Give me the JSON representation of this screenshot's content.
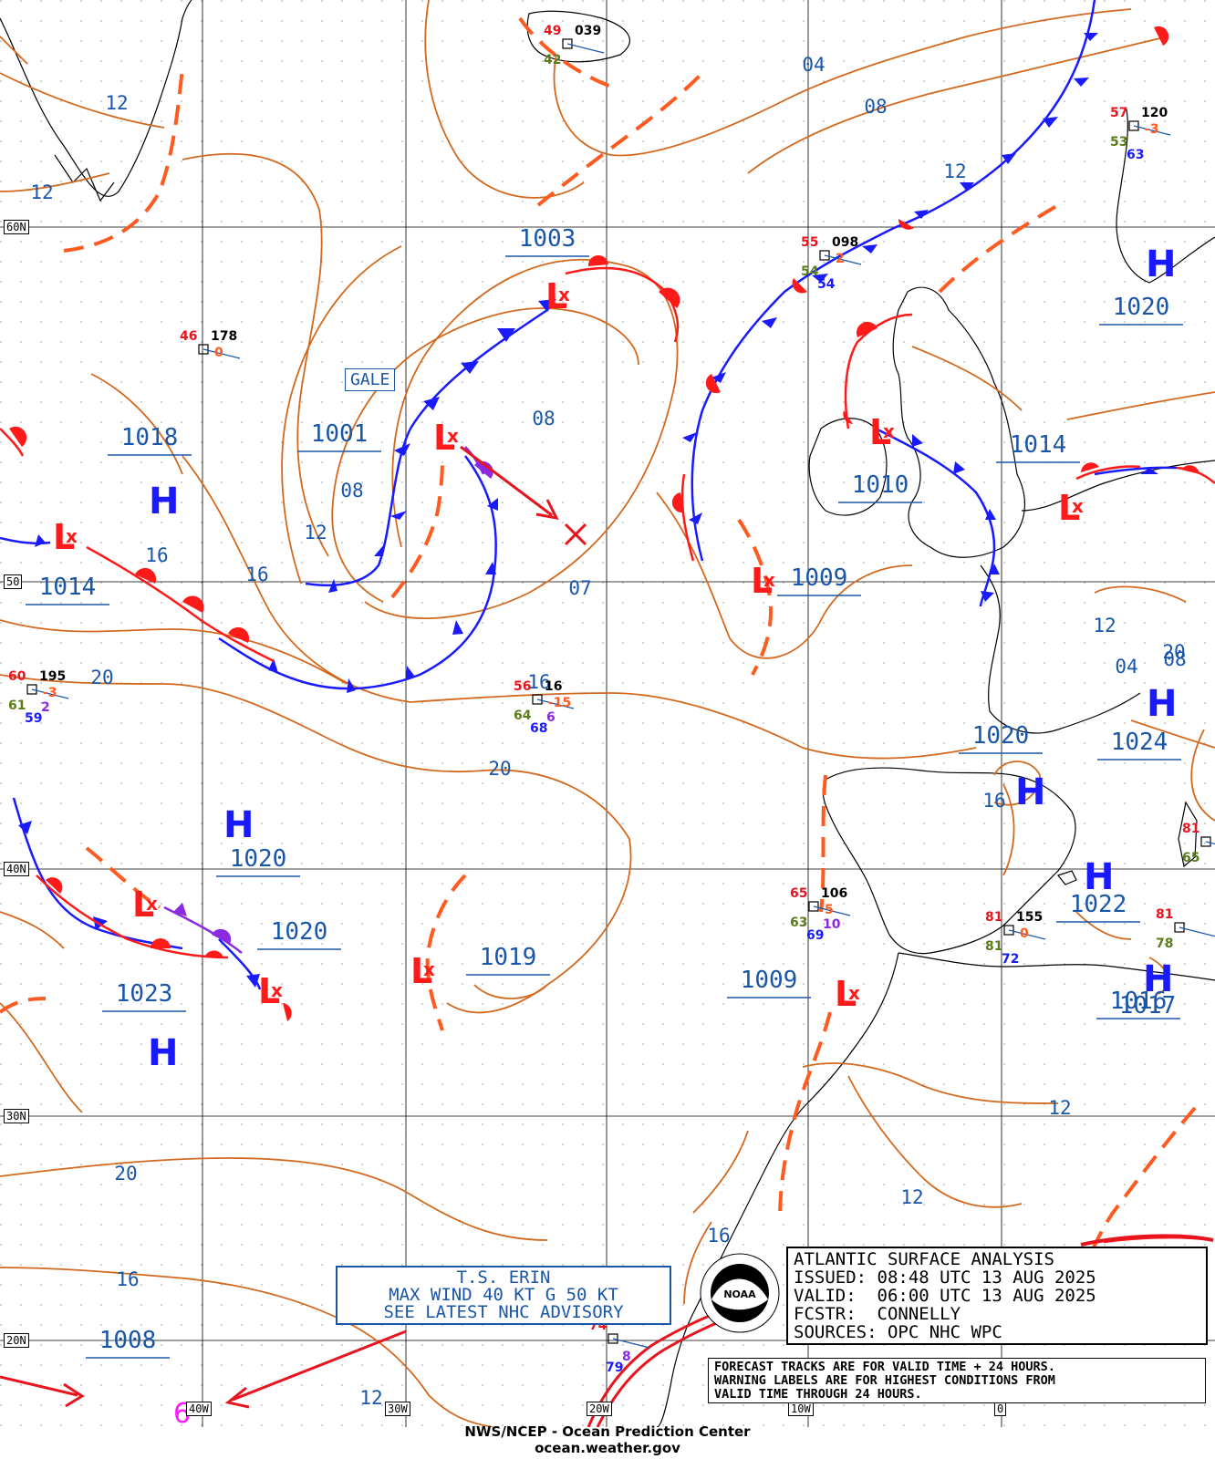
{
  "title_box": {
    "line1": "ATLANTIC SURFACE ANALYSIS",
    "line2": "ISSUED: 08:48 UTC 13 AUG 2025",
    "line3": "VALID:  06:00 UTC 13 AUG 2025",
    "line4": "FCSTR:  CONNELLY",
    "line5": "SOURCES: OPC NHC WPC"
  },
  "warning_box": {
    "line1": "FORECAST TRACKS ARE FOR VALID TIME + 24 HOURS.",
    "line2": "WARNING LABELS ARE FOR HIGHEST CONDITIONS FROM",
    "line3": "VALID TIME THROUGH 24 HOURS."
  },
  "storm_box": {
    "line1": "T.S. ERIN",
    "line2": "MAX WIND 40 KT G 50 KT",
    "line3": "SEE LATEST NHC ADVISORY"
  },
  "credit": {
    "line1": "NWS/NCEP - Ocean Prediction Center",
    "line2": "ocean.weather.gov"
  },
  "warning_label": "GALE",
  "logo_text": "NOAA",
  "lat_labels": [
    "60N",
    "50",
    "40N",
    "30N",
    "20N"
  ],
  "lon_labels": [
    "40W",
    "30W",
    "20W",
    "10W",
    "0"
  ],
  "pressure_centers": [
    {
      "type": "L",
      "value": "1003"
    },
    {
      "type": "L",
      "value": "1001"
    },
    {
      "type": "L",
      "value": "1014"
    },
    {
      "type": "L",
      "value": "1010"
    },
    {
      "type": "L",
      "value": "1014"
    },
    {
      "type": "L",
      "value": "1009"
    },
    {
      "type": "L",
      "value": "1020"
    },
    {
      "type": "L",
      "value": "1019"
    },
    {
      "type": "L",
      "value": "1009"
    },
    {
      "type": "L",
      "value": "1020"
    },
    {
      "type": "H",
      "value": "1018"
    },
    {
      "type": "H",
      "value": "1020"
    },
    {
      "type": "H",
      "value": "1024"
    },
    {
      "type": "H",
      "value": "1020"
    },
    {
      "type": "H",
      "value": "1023"
    },
    {
      "type": "H",
      "value": "1022"
    },
    {
      "type": "H",
      "value": "1016"
    },
    {
      "type": "H",
      "value": "1017"
    },
    {
      "type": "L",
      "value": "1008"
    }
  ],
  "isobar_labels": [
    "04",
    "08",
    "12",
    "12",
    "16",
    "16",
    "20",
    "20",
    "20",
    "16",
    "12",
    "12",
    "08",
    "08",
    "12",
    "16",
    "12",
    "04",
    "08",
    "12",
    "07",
    "16",
    "16",
    "20",
    "12"
  ],
  "ship_obs": [
    {
      "temp": "49",
      "dew": "42",
      "pres": "039"
    },
    {
      "temp": "57",
      "dew": "53",
      "pres": "120",
      "tend": "-3",
      "sst": "63"
    },
    {
      "temp": "46",
      "pres": "178",
      "tend": "0"
    },
    {
      "temp": "55",
      "dew": "54",
      "pres": "098",
      "sst": "54",
      "tend": "2"
    },
    {
      "temp": "60",
      "dew": "61",
      "pres": "195",
      "tend": "-3",
      "sst": "59",
      "extra": "2"
    },
    {
      "temp": "56",
      "dew": "64",
      "pres": "16",
      "tend": "-15",
      "sst": "68",
      "extra": "6"
    },
    {
      "temp": "65",
      "dew": "63",
      "pres": "106",
      "tend": "5",
      "sst": "69",
      "extra": "10"
    },
    {
      "temp": "81",
      "dew": "81",
      "pres": "155",
      "tend": "0",
      "sst": "72"
    },
    {
      "temp": "81",
      "dew": "78"
    },
    {
      "temp": "81",
      "dew": "65"
    },
    {
      "temp": "74",
      "sst": "79",
      "extra": "8"
    }
  ],
  "storm_symbol": "6"
}
